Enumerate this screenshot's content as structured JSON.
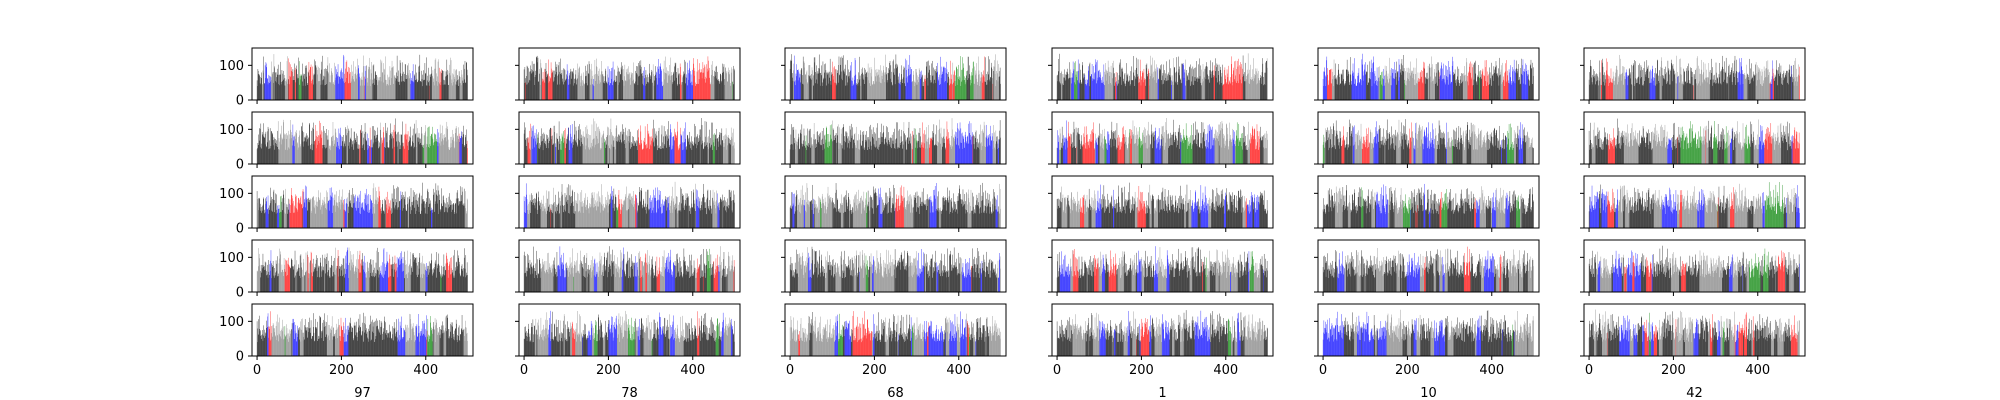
{
  "chart_data": {
    "type": "bar",
    "layout": "grid of 5 rows x 6 columns of small multiples, shared x and y axes",
    "grid": false,
    "x_range": [
      -12,
      512
    ],
    "y_range": [
      0,
      150
    ],
    "x_ticks": [
      0,
      200,
      400
    ],
    "x_tick_labels": [
      "0",
      "200",
      "400"
    ],
    "y_ticks": [
      0,
      100
    ],
    "y_tick_labels": [
      "0",
      "100"
    ],
    "column_labels": [
      "97",
      "78",
      "68",
      "1",
      "10",
      "42"
    ],
    "bars_per_panel": 500,
    "bar_value_range": [
      40,
      135
    ],
    "bar_colors": [
      "#000000",
      "#808080",
      "#0000ff",
      "#ff0000",
      "#008000"
    ],
    "panels": [
      {
        "row": 0,
        "col": 0
      },
      {
        "row": 0,
        "col": 1
      },
      {
        "row": 0,
        "col": 2
      },
      {
        "row": 0,
        "col": 3
      },
      {
        "row": 0,
        "col": 4
      },
      {
        "row": 0,
        "col": 5
      },
      {
        "row": 1,
        "col": 0
      },
      {
        "row": 1,
        "col": 1
      },
      {
        "row": 1,
        "col": 2
      },
      {
        "row": 1,
        "col": 3
      },
      {
        "row": 1,
        "col": 4
      },
      {
        "row": 1,
        "col": 5
      },
      {
        "row": 2,
        "col": 0
      },
      {
        "row": 2,
        "col": 1
      },
      {
        "row": 2,
        "col": 2
      },
      {
        "row": 2,
        "col": 3
      },
      {
        "row": 2,
        "col": 4
      },
      {
        "row": 2,
        "col": 5
      },
      {
        "row": 3,
        "col": 0
      },
      {
        "row": 3,
        "col": 1
      },
      {
        "row": 3,
        "col": 2
      },
      {
        "row": 3,
        "col": 3
      },
      {
        "row": 3,
        "col": 4
      },
      {
        "row": 3,
        "col": 5
      },
      {
        "row": 4,
        "col": 0
      },
      {
        "row": 4,
        "col": 1
      },
      {
        "row": 4,
        "col": 2
      },
      {
        "row": 4,
        "col": 3
      },
      {
        "row": 4,
        "col": 4
      },
      {
        "row": 4,
        "col": 5
      }
    ]
  }
}
